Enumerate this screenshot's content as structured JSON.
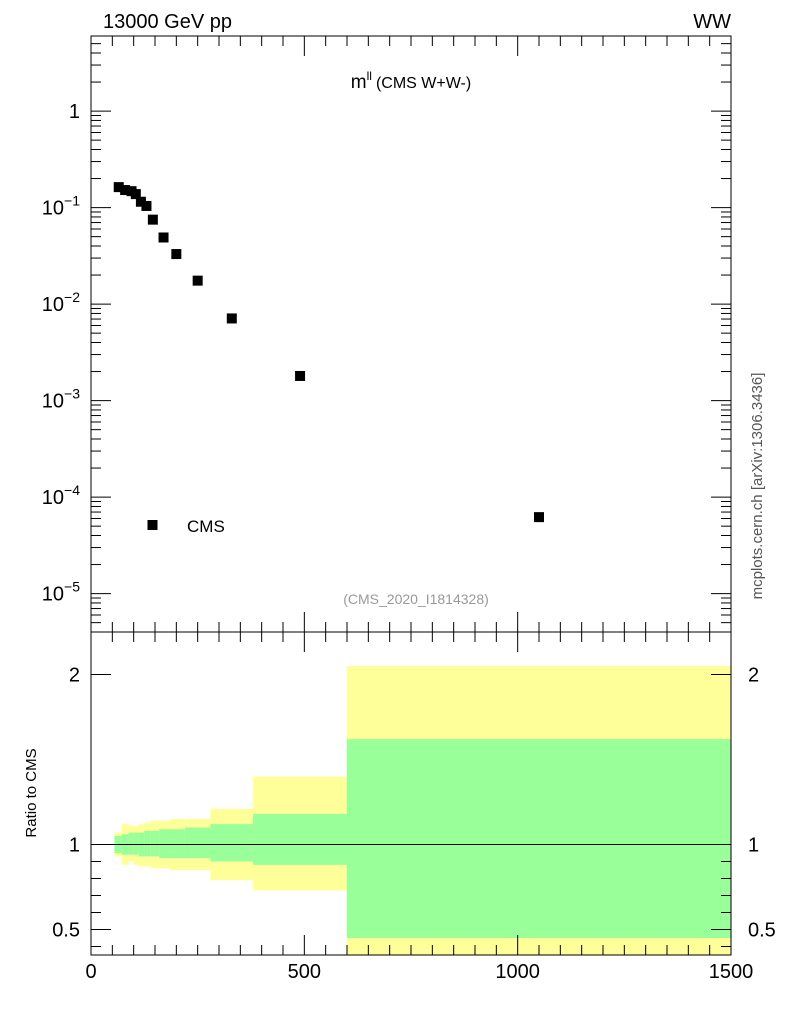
{
  "header": {
    "left": "13000 GeV pp",
    "right": "WW"
  },
  "side_label": "mcplots.cern.ch [arXiv:1306.3436]",
  "chart_data": [
    {
      "type": "scatter",
      "title_main": "m",
      "title_sup": "ll",
      "title_rest": "(CMS W+W-)",
      "analysis_id": "(CMS_2020_I1814328)",
      "xlim": [
        0,
        1500
      ],
      "ylim": [
        4e-06,
        6
      ],
      "yscale": "log",
      "y_ticks": [
        {
          "value": 1,
          "label": "1"
        },
        {
          "value": 0.1,
          "base": "10",
          "exp": "−1"
        },
        {
          "value": 0.01,
          "base": "10",
          "exp": "−2"
        },
        {
          "value": 0.001,
          "base": "10",
          "exp": "−3"
        },
        {
          "value": 0.0001,
          "base": "10",
          "exp": "−4"
        },
        {
          "value": 1e-05,
          "base": "10",
          "exp": "−5"
        }
      ],
      "legend": {
        "label": "CMS",
        "position": "lower-left"
      },
      "series": [
        {
          "name": "CMS",
          "x": [
            65,
            80,
            95,
            105,
            117,
            130,
            145,
            170,
            200,
            250,
            330,
            490,
            1050
          ],
          "y": [
            0.163,
            0.152,
            0.148,
            0.138,
            0.115,
            0.104,
            0.075,
            0.049,
            0.033,
            0.0175,
            0.0071,
            0.0018,
            6.2e-05
          ]
        }
      ]
    },
    {
      "type": "area",
      "ylabel": "Ratio to CMS",
      "xlim": [
        0,
        1500
      ],
      "ylim": [
        0.35,
        2.25
      ],
      "x_ticks": [
        0,
        500,
        1000,
        1500
      ],
      "y_ticks": [
        0.5,
        1,
        2
      ],
      "reference_line": 1,
      "colors": {
        "stat": "#99ff99",
        "total": "#ffff99"
      },
      "bins": [
        {
          "lo": 55,
          "hi": 72,
          "stat": [
            0.95,
            1.05
          ],
          "total": [
            0.93,
            1.07
          ]
        },
        {
          "lo": 72,
          "hi": 88,
          "stat": [
            0.94,
            1.06
          ],
          "total": [
            0.88,
            1.12
          ]
        },
        {
          "lo": 88,
          "hi": 100,
          "stat": [
            0.94,
            1.07
          ],
          "total": [
            0.9,
            1.11
          ]
        },
        {
          "lo": 100,
          "hi": 112,
          "stat": [
            0.94,
            1.07
          ],
          "total": [
            0.88,
            1.11
          ]
        },
        {
          "lo": 112,
          "hi": 125,
          "stat": [
            0.93,
            1.07
          ],
          "total": [
            0.87,
            1.12
          ]
        },
        {
          "lo": 125,
          "hi": 140,
          "stat": [
            0.93,
            1.08
          ],
          "total": [
            0.87,
            1.13
          ]
        },
        {
          "lo": 140,
          "hi": 160,
          "stat": [
            0.93,
            1.08
          ],
          "total": [
            0.86,
            1.14
          ]
        },
        {
          "lo": 160,
          "hi": 185,
          "stat": [
            0.92,
            1.09
          ],
          "total": [
            0.86,
            1.14
          ]
        },
        {
          "lo": 185,
          "hi": 220,
          "stat": [
            0.92,
            1.09
          ],
          "total": [
            0.85,
            1.15
          ]
        },
        {
          "lo": 220,
          "hi": 280,
          "stat": [
            0.92,
            1.1
          ],
          "total": [
            0.85,
            1.15
          ]
        },
        {
          "lo": 280,
          "hi": 380,
          "stat": [
            0.9,
            1.12
          ],
          "total": [
            0.79,
            1.21
          ]
        },
        {
          "lo": 380,
          "hi": 600,
          "stat": [
            0.88,
            1.18
          ],
          "total": [
            0.73,
            1.4
          ]
        },
        {
          "lo": 600,
          "hi": 1500,
          "stat": [
            0.45,
            1.62
          ],
          "total": [
            0.35,
            2.05
          ]
        }
      ]
    }
  ]
}
